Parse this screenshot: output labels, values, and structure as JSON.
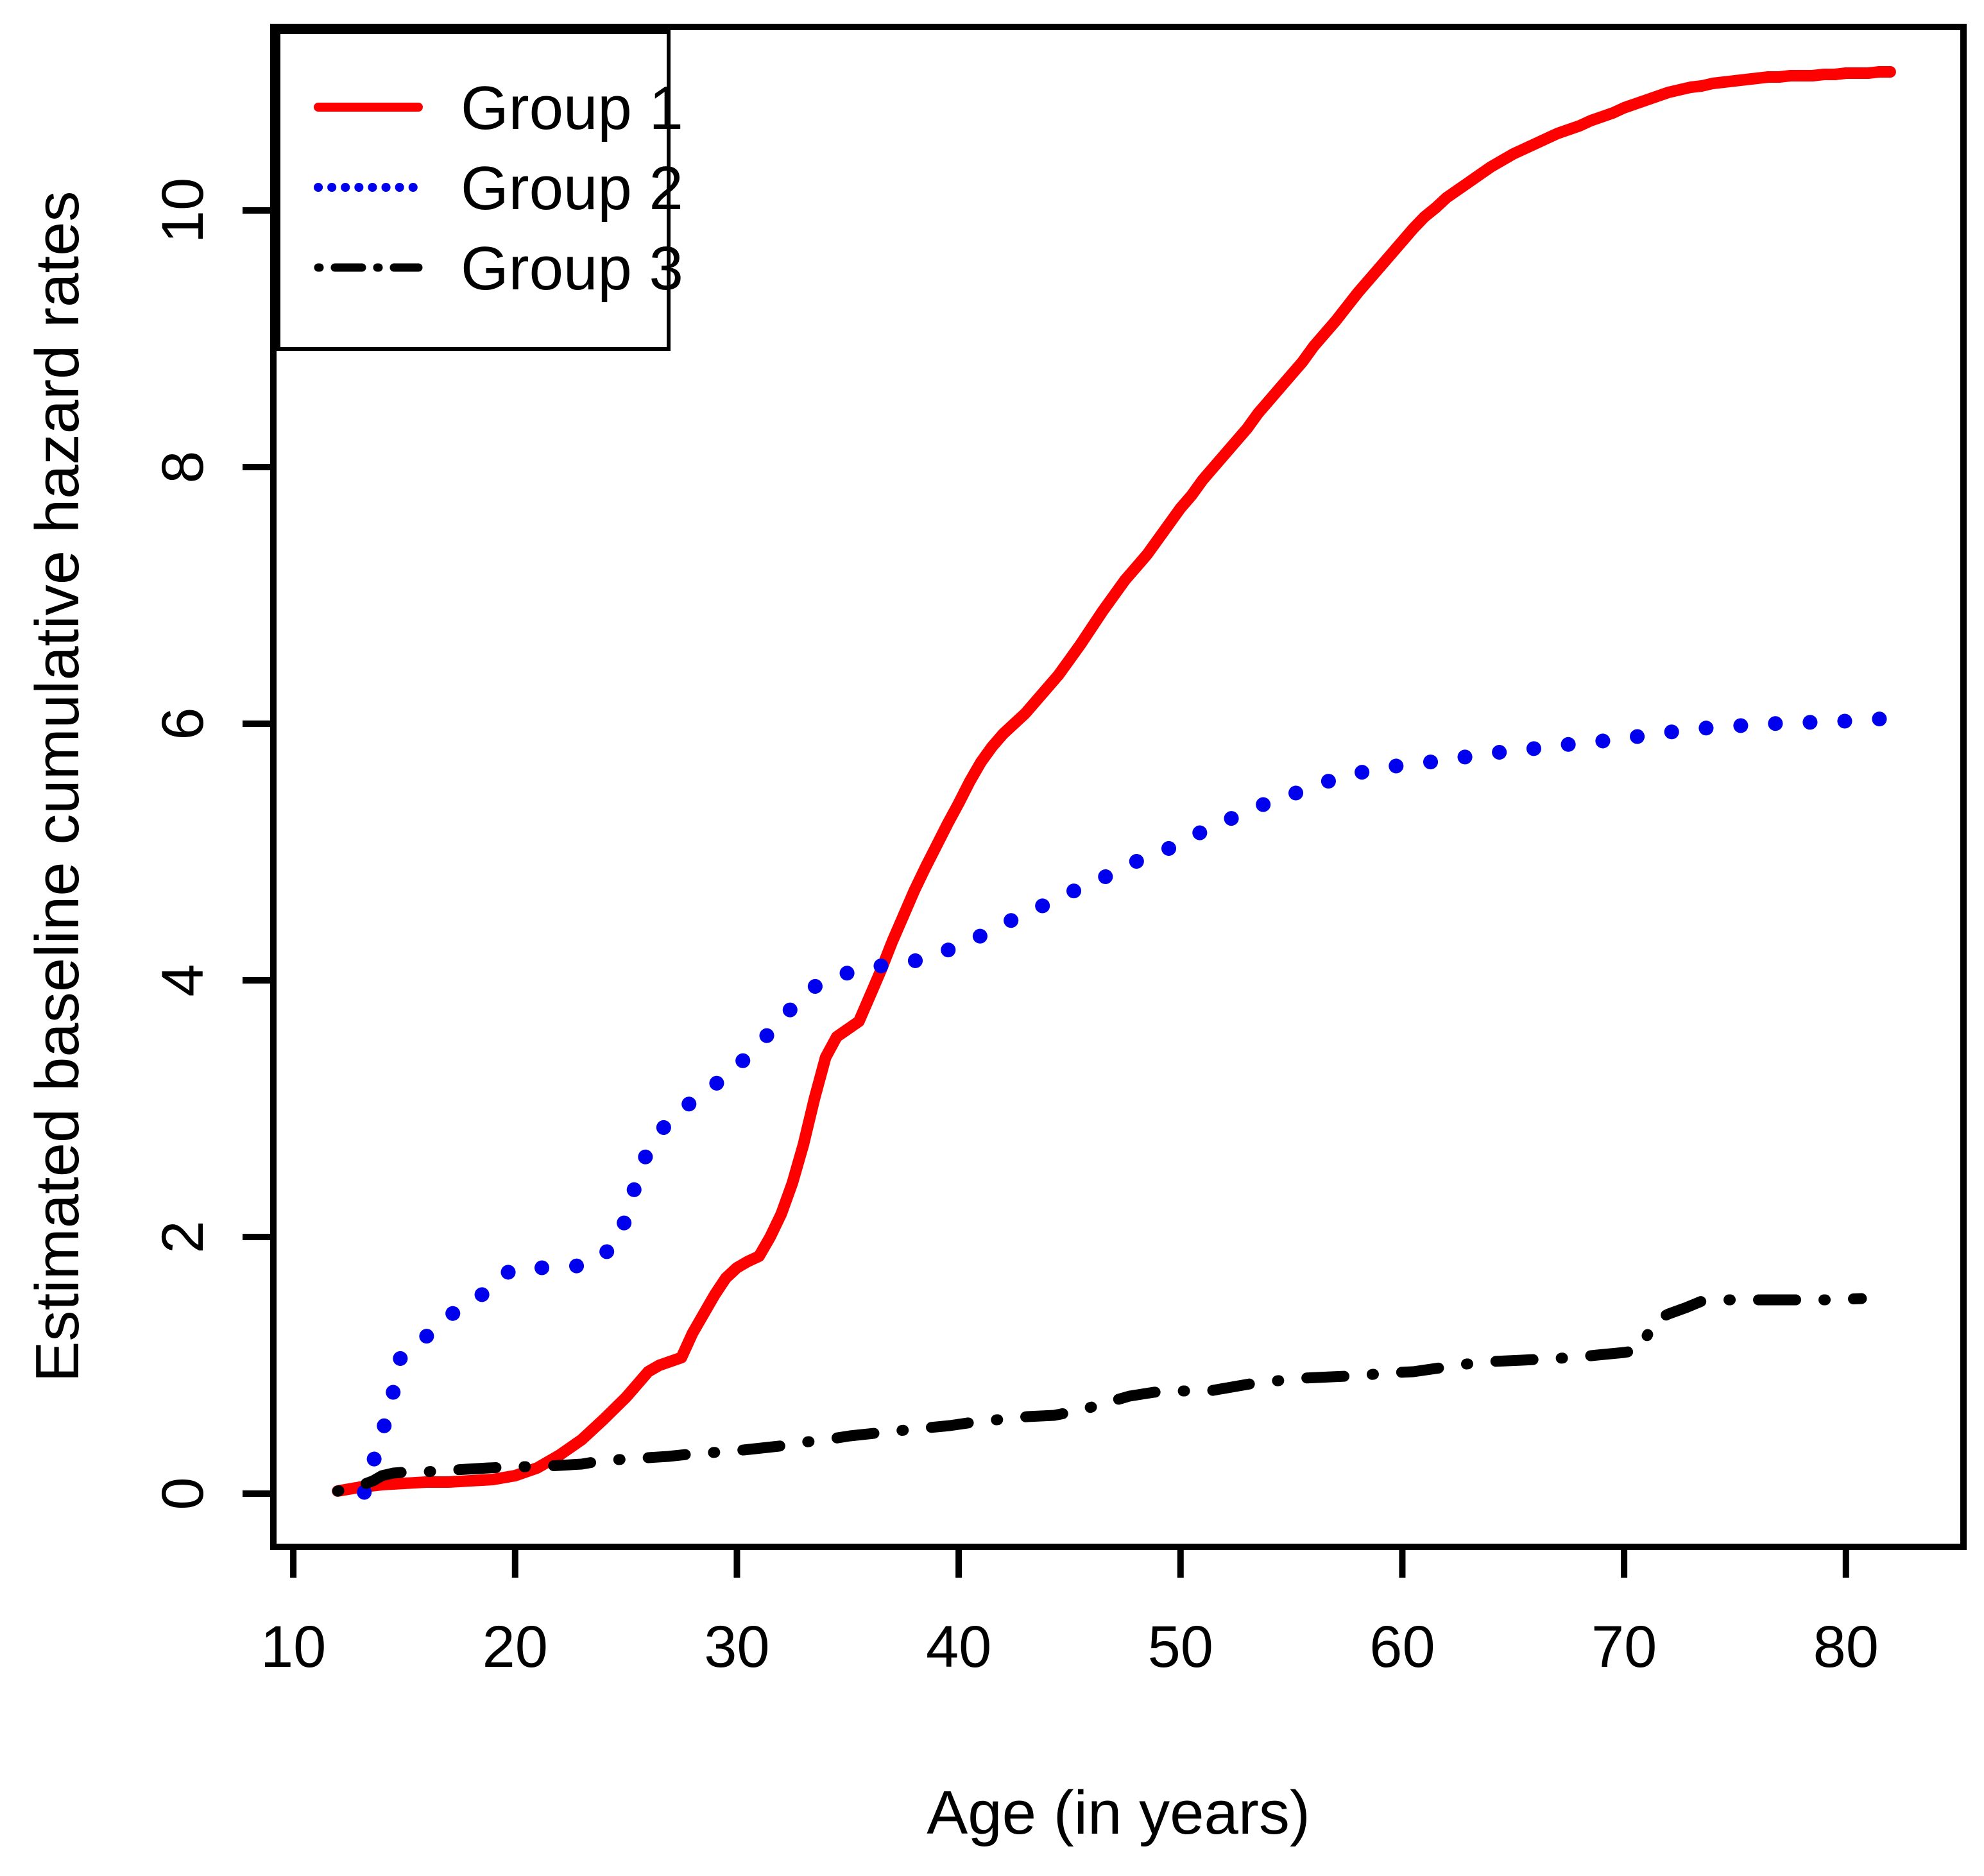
{
  "chart_data": {
    "type": "line",
    "title": "",
    "xlabel": "Age (in years)",
    "ylabel": "Estimated baseline cumulative hazard rates",
    "xlim": [
      9.1,
      85.3
    ],
    "ylim": [
      -0.415,
      11.43
    ],
    "x_ticks": [
      10,
      20,
      30,
      40,
      50,
      60,
      70,
      80
    ],
    "y_ticks": [
      0,
      2,
      4,
      6,
      8,
      10
    ],
    "grid": false,
    "legend_position": "top-left",
    "series": [
      {
        "name": "Group 1",
        "color": "#FF0000",
        "style": "solid",
        "points": [
          [
            12,
            0.02
          ],
          [
            13,
            0.05
          ],
          [
            14,
            0.07
          ],
          [
            15,
            0.08
          ],
          [
            16,
            0.09
          ],
          [
            17,
            0.09
          ],
          [
            18,
            0.1
          ],
          [
            19,
            0.11
          ],
          [
            20,
            0.14
          ],
          [
            21,
            0.2
          ],
          [
            22,
            0.3
          ],
          [
            23,
            0.42
          ],
          [
            24,
            0.58
          ],
          [
            25,
            0.75
          ],
          [
            26,
            0.95
          ],
          [
            26.5,
            1.0
          ],
          [
            27.5,
            1.06
          ],
          [
            28,
            1.25
          ],
          [
            28.5,
            1.4
          ],
          [
            29,
            1.55
          ],
          [
            29.5,
            1.68
          ],
          [
            30,
            1.76
          ],
          [
            30.5,
            1.81
          ],
          [
            31,
            1.85
          ],
          [
            31.5,
            2.0
          ],
          [
            32,
            2.18
          ],
          [
            32.5,
            2.42
          ],
          [
            33,
            2.72
          ],
          [
            33.5,
            3.08
          ],
          [
            34,
            3.4
          ],
          [
            34.5,
            3.56
          ],
          [
            35,
            3.62
          ],
          [
            35.5,
            3.68
          ],
          [
            36,
            3.88
          ],
          [
            36.5,
            4.08
          ],
          [
            37,
            4.3
          ],
          [
            37.5,
            4.5
          ],
          [
            38,
            4.7
          ],
          [
            38.5,
            4.88
          ],
          [
            39,
            5.05
          ],
          [
            39.5,
            5.22
          ],
          [
            40,
            5.38
          ],
          [
            40.5,
            5.55
          ],
          [
            41,
            5.7
          ],
          [
            41.5,
            5.82
          ],
          [
            42,
            5.92
          ],
          [
            42.5,
            6.0
          ],
          [
            43,
            6.08
          ],
          [
            43.5,
            6.18
          ],
          [
            44,
            6.28
          ],
          [
            44.5,
            6.38
          ],
          [
            45,
            6.5
          ],
          [
            45.5,
            6.62
          ],
          [
            46,
            6.75
          ],
          [
            46.5,
            6.88
          ],
          [
            47,
            7.0
          ],
          [
            47.5,
            7.12
          ],
          [
            48,
            7.22
          ],
          [
            48.5,
            7.32
          ],
          [
            49,
            7.44
          ],
          [
            49.5,
            7.56
          ],
          [
            50,
            7.68
          ],
          [
            50.5,
            7.78
          ],
          [
            51,
            7.9
          ],
          [
            51.5,
            8.0
          ],
          [
            52,
            8.1
          ],
          [
            52.5,
            8.2
          ],
          [
            53,
            8.3
          ],
          [
            53.5,
            8.42
          ],
          [
            54,
            8.52
          ],
          [
            54.5,
            8.62
          ],
          [
            55,
            8.72
          ],
          [
            55.5,
            8.82
          ],
          [
            56,
            8.94
          ],
          [
            56.5,
            9.04
          ],
          [
            57,
            9.14
          ],
          [
            57.5,
            9.25
          ],
          [
            58,
            9.36
          ],
          [
            58.5,
            9.46
          ],
          [
            59,
            9.56
          ],
          [
            59.5,
            9.66
          ],
          [
            60,
            9.76
          ],
          [
            60.5,
            9.86
          ],
          [
            61,
            9.95
          ],
          [
            61.5,
            10.02
          ],
          [
            62,
            10.1
          ],
          [
            62.5,
            10.16
          ],
          [
            63,
            10.22
          ],
          [
            63.5,
            10.28
          ],
          [
            64,
            10.34
          ],
          [
            64.5,
            10.39
          ],
          [
            65,
            10.44
          ],
          [
            65.5,
            10.48
          ],
          [
            66,
            10.52
          ],
          [
            66.5,
            10.56
          ],
          [
            67,
            10.6
          ],
          [
            67.5,
            10.63
          ],
          [
            68,
            10.66
          ],
          [
            68.5,
            10.7
          ],
          [
            69,
            10.73
          ],
          [
            69.5,
            10.76
          ],
          [
            70,
            10.8
          ],
          [
            70.5,
            10.83
          ],
          [
            71,
            10.86
          ],
          [
            71.5,
            10.89
          ],
          [
            72,
            10.92
          ],
          [
            72.5,
            10.94
          ],
          [
            73,
            10.96
          ],
          [
            73.5,
            10.97
          ],
          [
            74,
            10.99
          ],
          [
            74.5,
            11.0
          ],
          [
            75,
            11.01
          ],
          [
            75.5,
            11.02
          ],
          [
            76,
            11.03
          ],
          [
            76.5,
            11.04
          ],
          [
            77,
            11.04
          ],
          [
            77.5,
            11.05
          ],
          [
            78,
            11.05
          ],
          [
            78.5,
            11.05
          ],
          [
            79,
            11.06
          ],
          [
            79.5,
            11.06
          ],
          [
            80,
            11.07
          ],
          [
            80.5,
            11.07
          ],
          [
            81,
            11.07
          ],
          [
            81.5,
            11.08
          ],
          [
            82,
            11.08
          ]
        ]
      },
      {
        "name": "Group 2",
        "color": "#0000EE",
        "style": "dotted",
        "points": [
          [
            13.2,
            0.01
          ],
          [
            13.8,
            0.36
          ],
          [
            14.4,
            0.7
          ],
          [
            14.8,
            1.05
          ],
          [
            15.4,
            1.12
          ],
          [
            16.2,
            1.26
          ],
          [
            17,
            1.38
          ],
          [
            17.8,
            1.48
          ],
          [
            18.6,
            1.56
          ],
          [
            19.3,
            1.68
          ],
          [
            19.9,
            1.75
          ],
          [
            20.7,
            1.76
          ],
          [
            21.5,
            1.76
          ],
          [
            22.4,
            1.77
          ],
          [
            23.3,
            1.78
          ],
          [
            24.1,
            1.88
          ],
          [
            24.7,
            1.98
          ],
          [
            25.2,
            2.28
          ],
          [
            25.8,
            2.6
          ],
          [
            26.3,
            2.76
          ],
          [
            26.9,
            2.9
          ],
          [
            27.7,
            3.02
          ],
          [
            28.4,
            3.1
          ],
          [
            29.1,
            3.2
          ],
          [
            29.9,
            3.3
          ],
          [
            30.5,
            3.42
          ],
          [
            31.1,
            3.52
          ],
          [
            31.6,
            3.62
          ],
          [
            32.1,
            3.72
          ],
          [
            32.7,
            3.82
          ],
          [
            33.2,
            3.92
          ],
          [
            34,
            4.0
          ],
          [
            34.8,
            4.05
          ],
          [
            35.6,
            4.08
          ],
          [
            36.4,
            4.11
          ],
          [
            37.2,
            4.13
          ],
          [
            38.3,
            4.16
          ],
          [
            39.1,
            4.21
          ],
          [
            39.9,
            4.26
          ],
          [
            40.8,
            4.33
          ],
          [
            41.6,
            4.4
          ],
          [
            42.4,
            4.47
          ],
          [
            43.2,
            4.53
          ],
          [
            44,
            4.6
          ],
          [
            44.7,
            4.66
          ],
          [
            45.5,
            4.72
          ],
          [
            46.3,
            4.78
          ],
          [
            47.1,
            4.85
          ],
          [
            47.9,
            4.92
          ],
          [
            48.7,
            4.97
          ],
          [
            49.5,
            5.03
          ],
          [
            50.3,
            5.1
          ],
          [
            51.1,
            5.17
          ],
          [
            52,
            5.24
          ],
          [
            52.8,
            5.3
          ],
          [
            53.6,
            5.36
          ],
          [
            54.4,
            5.42
          ],
          [
            55.2,
            5.46
          ],
          [
            56,
            5.51
          ],
          [
            56.8,
            5.56
          ],
          [
            57.6,
            5.6
          ],
          [
            58.4,
            5.63
          ],
          [
            59.2,
            5.66
          ],
          [
            60.2,
            5.68
          ],
          [
            61.2,
            5.7
          ],
          [
            62,
            5.72
          ],
          [
            62.8,
            5.74
          ],
          [
            63.6,
            5.76
          ],
          [
            64.5,
            5.78
          ],
          [
            65.4,
            5.8
          ],
          [
            66.3,
            5.81
          ],
          [
            67.1,
            5.83
          ],
          [
            68,
            5.85
          ],
          [
            68.8,
            5.86
          ],
          [
            69.7,
            5.88
          ],
          [
            70.6,
            5.9
          ],
          [
            71.5,
            5.92
          ],
          [
            72.3,
            5.94
          ],
          [
            73.2,
            5.96
          ],
          [
            74,
            5.97
          ],
          [
            74.8,
            5.98
          ],
          [
            75.7,
            5.99
          ],
          [
            76.7,
            6.0
          ],
          [
            77.5,
            6.01
          ],
          [
            78.3,
            6.01
          ],
          [
            79.1,
            6.02
          ],
          [
            80,
            6.02
          ],
          [
            80.9,
            6.03
          ],
          [
            81.8,
            6.04
          ]
        ]
      },
      {
        "name": "Group 3",
        "color": "#000000",
        "style": "dashdot",
        "points": [
          [
            12,
            0.02
          ],
          [
            13,
            0.06
          ],
          [
            13.6,
            0.1
          ],
          [
            14,
            0.14
          ],
          [
            14.5,
            0.16
          ],
          [
            15.2,
            0.17
          ],
          [
            16,
            0.17
          ],
          [
            16.8,
            0.18
          ],
          [
            17.8,
            0.19
          ],
          [
            18.8,
            0.2
          ],
          [
            20,
            0.21
          ],
          [
            21,
            0.21
          ],
          [
            22,
            0.22
          ],
          [
            23,
            0.23
          ],
          [
            23.7,
            0.25
          ],
          [
            25,
            0.27
          ],
          [
            26,
            0.28
          ],
          [
            26.9,
            0.29
          ],
          [
            28,
            0.31
          ],
          [
            28.9,
            0.32
          ],
          [
            30.3,
            0.34
          ],
          [
            31.9,
            0.37
          ],
          [
            33,
            0.4
          ],
          [
            34,
            0.42
          ],
          [
            35.1,
            0.45
          ],
          [
            36.2,
            0.47
          ],
          [
            37.3,
            0.49
          ],
          [
            38.4,
            0.51
          ],
          [
            39.6,
            0.53
          ],
          [
            40.8,
            0.56
          ],
          [
            42,
            0.58
          ],
          [
            43.1,
            0.6
          ],
          [
            44.3,
            0.61
          ],
          [
            45.5,
            0.65
          ],
          [
            46.7,
            0.71
          ],
          [
            47.7,
            0.76
          ],
          [
            48.8,
            0.79
          ],
          [
            50,
            0.8
          ],
          [
            51.3,
            0.8
          ],
          [
            52.3,
            0.83
          ],
          [
            53.3,
            0.86
          ],
          [
            54.4,
            0.88
          ],
          [
            55.5,
            0.9
          ],
          [
            56.8,
            0.91
          ],
          [
            58.1,
            0.92
          ],
          [
            59.3,
            0.94
          ],
          [
            60.5,
            0.95
          ],
          [
            61.7,
            0.98
          ],
          [
            62.9,
            1.01
          ],
          [
            64.1,
            1.03
          ],
          [
            65.4,
            1.04
          ],
          [
            66.5,
            1.05
          ],
          [
            67.7,
            1.06
          ],
          [
            68.8,
            1.08
          ],
          [
            70,
            1.1
          ],
          [
            70.7,
            1.12
          ],
          [
            71.4,
            1.35
          ],
          [
            72,
            1.4
          ],
          [
            72.8,
            1.45
          ],
          [
            73.5,
            1.5
          ],
          [
            74.7,
            1.51
          ],
          [
            75.9,
            1.51
          ],
          [
            77.6,
            1.51
          ],
          [
            79.2,
            1.51
          ],
          [
            80.7,
            1.52
          ]
        ]
      }
    ]
  }
}
